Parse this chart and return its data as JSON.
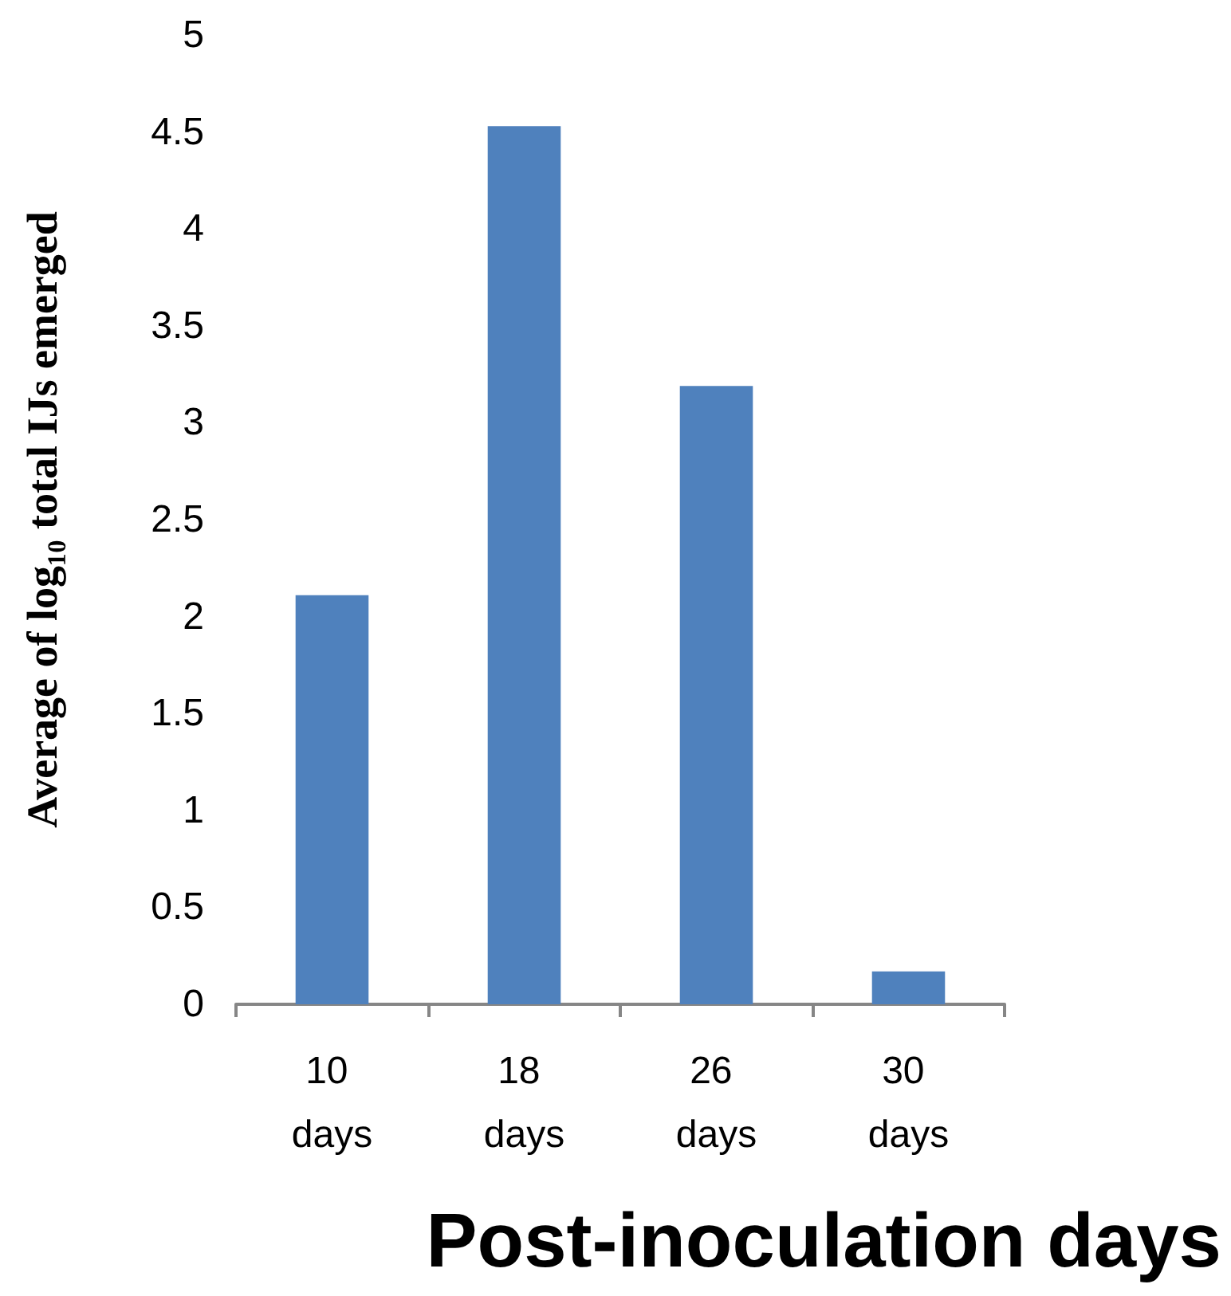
{
  "chart_data": {
    "type": "bar",
    "xlabel": "Post-inoculation days",
    "ylabel": "Average of log₁₀ total IJs emerged",
    "categories": [
      "10 days",
      "18 days",
      "26 days",
      "30 days"
    ],
    "values": [
      2.11,
      4.53,
      3.19,
      0.17
    ],
    "color": "#4f81bd",
    "ylim": [
      0,
      5
    ],
    "yticks": [
      0,
      0.5,
      1,
      1.5,
      2,
      2.5,
      3,
      3.5,
      4,
      4.5,
      5
    ],
    "grid": false
  }
}
